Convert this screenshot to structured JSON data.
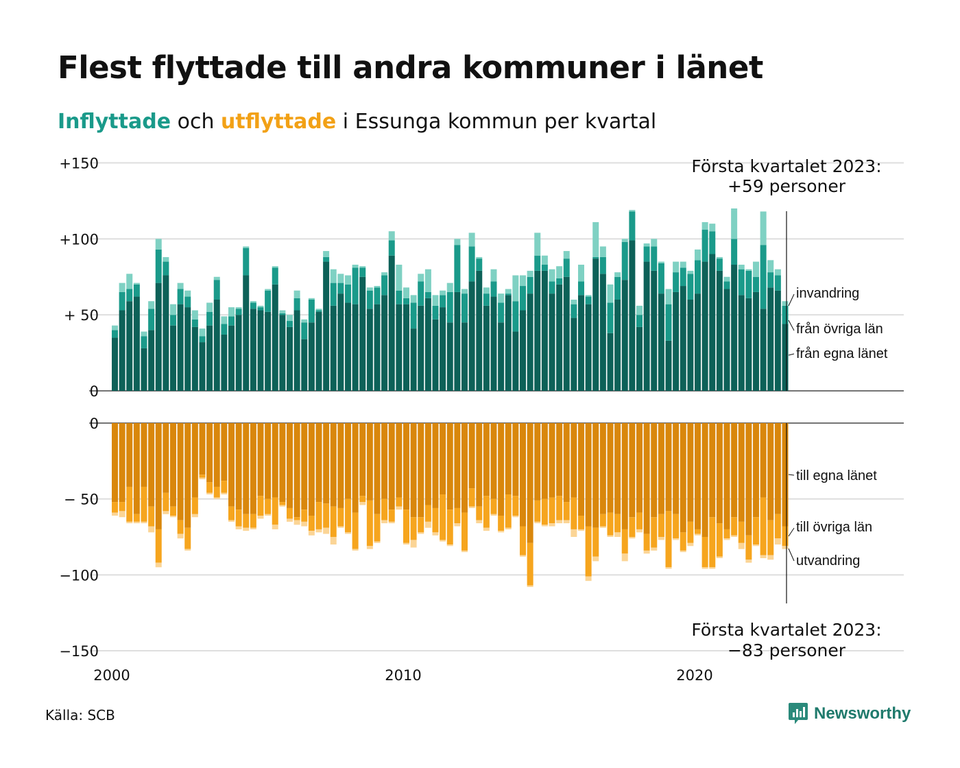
{
  "title": "Flest flyttade till andra kommuner i länet",
  "subtitle": {
    "in_word": "Inflyttade",
    "mid": " och ",
    "out_word": "utflyttade",
    "rest": " i Essunga kommun per kvartal"
  },
  "colors": {
    "in_lan": "#0d6158",
    "in_ovr": "#1a9a8a",
    "in_inv": "#7fd1c3",
    "out_lan": "#d9870c",
    "out_ovr": "#f6a51e",
    "out_utv": "#fbd596"
  },
  "source": "Källa: SCB",
  "brand": "Newsworthy",
  "chart_data": {
    "type": "bar",
    "stacked": true,
    "start_year": 2000,
    "x_ticks": [
      "2000",
      "2010",
      "2020"
    ],
    "top": {
      "y_ticks": [
        "+150",
        "+100",
        "+ 50",
        "0"
      ],
      "ylim": [
        0,
        150
      ],
      "annotation": [
        "Första kvartalet 2023:",
        "+59 personer"
      ],
      "series_labels": [
        "invandring",
        "från övriga län",
        "från egna länet"
      ],
      "egna": [
        35,
        53,
        59,
        62,
        28,
        40,
        71,
        76,
        43,
        57,
        55,
        42,
        32,
        43,
        60,
        37,
        43,
        50,
        76,
        54,
        53,
        52,
        70,
        50,
        42,
        53,
        34,
        45,
        52,
        85,
        56,
        64,
        58,
        57,
        75,
        54,
        57,
        63,
        89,
        57,
        57,
        41,
        56,
        61,
        47,
        55,
        45,
        65,
        45,
        72,
        79,
        56,
        62,
        45,
        63,
        39,
        53,
        64,
        79,
        79,
        64,
        70,
        75,
        48,
        63,
        57,
        87,
        77,
        38,
        60,
        73,
        99,
        42,
        85,
        79,
        64,
        33,
        65,
        69,
        60,
        64,
        85,
        90,
        79,
        67,
        83,
        63,
        61,
        65,
        54,
        68,
        66,
        44
      ],
      "ovr": [
        5,
        12,
        8,
        8,
        8,
        14,
        22,
        9,
        7,
        10,
        7,
        5,
        4,
        9,
        13,
        7,
        6,
        4,
        18,
        4,
        2,
        14,
        11,
        1,
        4,
        8,
        11,
        15,
        1,
        3,
        15,
        7,
        12,
        24,
        6,
        12,
        11,
        13,
        10,
        9,
        4,
        17,
        16,
        4,
        9,
        8,
        20,
        31,
        19,
        23,
        8,
        8,
        10,
        13,
        1,
        20,
        16,
        11,
        10,
        4,
        8,
        4,
        12,
        9,
        9,
        5,
        1,
        11,
        20,
        15,
        25,
        19,
        8,
        10,
        16,
        20,
        24,
        13,
        12,
        17,
        22,
        21,
        15,
        8,
        5,
        17,
        17,
        18,
        10,
        42,
        10,
        10,
        12
      ],
      "inv": [
        3,
        6,
        10,
        1,
        3,
        5,
        7,
        3,
        7,
        4,
        4,
        6,
        5,
        6,
        2,
        5,
        6,
        1,
        1,
        1,
        1,
        1,
        1,
        2,
        4,
        5,
        2,
        1,
        1,
        4,
        9,
        6,
        6,
        2,
        1,
        2,
        1,
        2,
        6,
        17,
        7,
        5,
        5,
        15,
        7,
        3,
        6,
        4,
        3,
        9,
        1,
        4,
        8,
        6,
        3,
        17,
        7,
        4,
        15,
        6,
        8,
        8,
        5,
        3,
        11,
        1,
        23,
        7,
        12,
        3,
        2,
        1,
        6,
        2,
        5,
        1,
        10,
        7,
        4,
        2,
        7,
        5,
        5,
        1,
        3,
        20,
        3,
        1,
        10,
        22,
        8,
        4,
        3
      ]
    },
    "bottom": {
      "y_ticks": [
        "0",
        "− 50",
        "−100",
        "−150"
      ],
      "ylim": [
        -150,
        0
      ],
      "annotation": [
        "Första kvartalet 2023:",
        "−83 personer"
      ],
      "series_labels": [
        "till egna länet",
        "till övriga län",
        "utvandring"
      ],
      "egna": [
        52,
        52,
        42,
        60,
        42,
        55,
        70,
        46,
        55,
        64,
        69,
        49,
        34,
        39,
        42,
        38,
        55,
        57,
        60,
        60,
        48,
        50,
        49,
        52,
        56,
        62,
        57,
        61,
        52,
        53,
        55,
        56,
        50,
        59,
        48,
        51,
        60,
        50,
        57,
        49,
        57,
        62,
        62,
        54,
        56,
        47,
        57,
        56,
        59,
        43,
        55,
        48,
        50,
        61,
        47,
        48,
        68,
        79,
        51,
        50,
        49,
        48,
        52,
        49,
        61,
        68,
        69,
        60,
        59,
        60,
        70,
        62,
        59,
        73,
        62,
        60,
        58,
        60,
        72,
        65,
        70,
        75,
        62,
        66,
        70,
        62,
        65,
        74,
        62,
        49,
        64,
        60,
        68
      ],
      "ovr": [
        7,
        6,
        23,
        5,
        23,
        13,
        22,
        12,
        6,
        9,
        14,
        11,
        2,
        7,
        7,
        8,
        9,
        11,
        9,
        9,
        13,
        10,
        18,
        2,
        7,
        2,
        8,
        10,
        18,
        16,
        20,
        12,
        22,
        24,
        4,
        30,
        18,
        14,
        8,
        6,
        22,
        15,
        10,
        11,
        16,
        30,
        23,
        10,
        25,
        12,
        9,
        21,
        10,
        10,
        22,
        13,
        19,
        28,
        14,
        17,
        17,
        16,
        12,
        21,
        9,
        33,
        19,
        8,
        15,
        12,
        16,
        13,
        11,
        11,
        20,
        15,
        37,
        16,
        12,
        14,
        3,
        20,
        33,
        22,
        6,
        12,
        14,
        16,
        18,
        38,
        23,
        16,
        13
      ],
      "utv": [
        2,
        4,
        1,
        1,
        1,
        4,
        3,
        2,
        1,
        3,
        1,
        2,
        1,
        1,
        1,
        1,
        1,
        2,
        2,
        1,
        2,
        1,
        3,
        1,
        2,
        3,
        3,
        3,
        2,
        4,
        5,
        1,
        1,
        1,
        2,
        2,
        1,
        2,
        1,
        2,
        1,
        5,
        1,
        4,
        2,
        1,
        1,
        2,
        1,
        1,
        2,
        2,
        1,
        1,
        1,
        1,
        1,
        1,
        1,
        1,
        2,
        2,
        2,
        5,
        1,
        3,
        3,
        1,
        1,
        3,
        5,
        1,
        2,
        2,
        2,
        2,
        1,
        1,
        1,
        2,
        1,
        1,
        1,
        1,
        1,
        1,
        4,
        2,
        1,
        2,
        3,
        4,
        2
      ]
    }
  }
}
